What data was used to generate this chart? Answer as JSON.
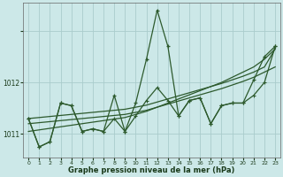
{
  "xlabel": "Graphe pression niveau de la mer (hPa)",
  "background_color": "#cce8e8",
  "grid_color": "#aacccc",
  "line_color": "#2d5a2d",
  "text_color": "#1a3a1a",
  "xlim": [
    -0.5,
    23.5
  ],
  "ylim": [
    1010.55,
    1013.55
  ],
  "yticks": [
    1011,
    1012,
    1013
  ],
  "ytick_labels": [
    "1011",
    "1012",
    ""
  ],
  "xticks": [
    0,
    1,
    2,
    3,
    4,
    5,
    6,
    7,
    8,
    9,
    10,
    11,
    12,
    13,
    14,
    15,
    16,
    17,
    18,
    19,
    20,
    21,
    22,
    23
  ],
  "series_main": [
    1011.3,
    1010.75,
    1010.85,
    1011.6,
    1011.55,
    1011.05,
    1011.1,
    1011.05,
    1011.75,
    1011.05,
    1011.6,
    1012.45,
    1013.4,
    1012.7,
    1011.35,
    1011.65,
    1011.7,
    1011.2,
    1011.55,
    1011.6,
    1011.6,
    1012.05,
    1012.5,
    1012.7
  ],
  "series_mid": [
    1011.3,
    1010.75,
    1010.85,
    1011.6,
    1011.55,
    1011.05,
    1011.1,
    1011.05,
    1011.3,
    1011.05,
    1011.35,
    1011.65,
    1011.9,
    1011.65,
    1011.35,
    1011.65,
    1011.7,
    1011.2,
    1011.55,
    1011.6,
    1011.6,
    1011.75,
    1012.0,
    1012.7
  ],
  "series_trend1": [
    1011.05,
    1011.08,
    1011.11,
    1011.14,
    1011.17,
    1011.2,
    1011.23,
    1011.26,
    1011.29,
    1011.32,
    1011.38,
    1011.44,
    1011.52,
    1011.6,
    1011.68,
    1011.76,
    1011.84,
    1011.92,
    1012.0,
    1012.1,
    1012.2,
    1012.3,
    1012.45,
    1012.65
  ],
  "series_trend2": [
    1011.2,
    1011.22,
    1011.24,
    1011.26,
    1011.28,
    1011.3,
    1011.32,
    1011.34,
    1011.36,
    1011.38,
    1011.42,
    1011.46,
    1011.52,
    1011.58,
    1011.64,
    1011.7,
    1011.76,
    1011.82,
    1011.88,
    1011.95,
    1012.02,
    1012.1,
    1012.2,
    1012.3
  ],
  "series_trend3": [
    1011.3,
    1011.32,
    1011.34,
    1011.36,
    1011.38,
    1011.4,
    1011.42,
    1011.44,
    1011.46,
    1011.48,
    1011.52,
    1011.56,
    1011.62,
    1011.68,
    1011.74,
    1011.8,
    1011.86,
    1011.92,
    1011.98,
    1012.05,
    1012.12,
    1012.2,
    1012.3,
    1012.65
  ]
}
